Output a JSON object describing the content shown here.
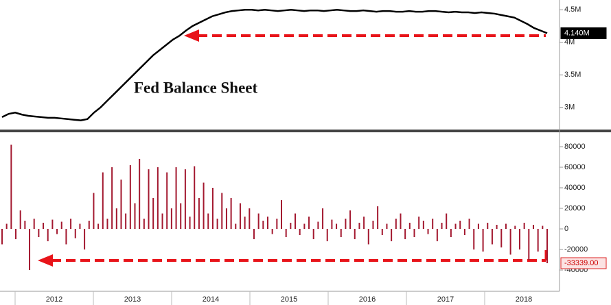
{
  "chart_data": [
    {
      "type": "line",
      "annotation": "Fed Balance Sheet",
      "color": "#000000",
      "values": [
        2.85,
        2.9,
        2.92,
        2.89,
        2.87,
        2.86,
        2.85,
        2.84,
        2.84,
        2.83,
        2.82,
        2.81,
        2.8,
        2.82,
        2.92,
        3.0,
        3.1,
        3.2,
        3.3,
        3.4,
        3.5,
        3.6,
        3.7,
        3.8,
        3.88,
        3.96,
        4.04,
        4.1,
        4.18,
        4.25,
        4.3,
        4.35,
        4.4,
        4.43,
        4.46,
        4.48,
        4.49,
        4.5,
        4.5,
        4.49,
        4.5,
        4.49,
        4.48,
        4.49,
        4.5,
        4.49,
        4.48,
        4.49,
        4.49,
        4.48,
        4.49,
        4.5,
        4.49,
        4.48,
        4.48,
        4.49,
        4.48,
        4.47,
        4.48,
        4.48,
        4.47,
        4.47,
        4.48,
        4.47,
        4.47,
        4.48,
        4.48,
        4.47,
        4.46,
        4.47,
        4.46,
        4.46,
        4.45,
        4.46,
        4.45,
        4.44,
        4.42,
        4.4,
        4.38,
        4.33,
        4.28,
        4.22,
        4.18,
        4.14
      ],
      "ylim": [
        2.67,
        4.65
      ],
      "yticks": [
        {
          "value": 3,
          "label": "3M"
        },
        {
          "value": 3.5,
          "label": "3.5M"
        },
        {
          "value": 4,
          "label": "4M"
        },
        {
          "value": 4.5,
          "label": "4.5M"
        }
      ],
      "last_label": {
        "value": 4.14,
        "label": "4.140M"
      }
    },
    {
      "type": "bar",
      "color": "#a3182f",
      "values": [
        -15000,
        5000,
        82000,
        -10000,
        18000,
        8000,
        -40000,
        10000,
        -8000,
        6000,
        -12000,
        9000,
        -5000,
        7000,
        -15000,
        10000,
        -9000,
        5000,
        -20000,
        8000,
        35000,
        5000,
        55000,
        10000,
        60000,
        20000,
        48000,
        15000,
        62000,
        25000,
        68000,
        10000,
        58000,
        30000,
        60000,
        15000,
        55000,
        20000,
        60000,
        25000,
        58000,
        12000,
        61000,
        30000,
        45000,
        15000,
        40000,
        10000,
        35000,
        20000,
        30000,
        5000,
        25000,
        12000,
        20000,
        -10000,
        15000,
        8000,
        12000,
        -5000,
        10000,
        28000,
        -8000,
        6000,
        15000,
        -6000,
        5000,
        12000,
        -10000,
        7000,
        20000,
        -12000,
        9000,
        5000,
        -8000,
        10000,
        18000,
        -10000,
        6000,
        12000,
        -15000,
        8000,
        22000,
        -6000,
        5000,
        -12000,
        10000,
        15000,
        -10000,
        6000,
        -8000,
        12000,
        8000,
        -5000,
        10000,
        -12000,
        6000,
        15000,
        -8000,
        5000,
        8000,
        -6000,
        10000,
        -20000,
        5000,
        -22000,
        6000,
        -15000,
        4000,
        -18000,
        5000,
        -25000,
        3000,
        -20000,
        6000,
        -30000,
        4000,
        -22000,
        3000,
        -33339
      ],
      "ylim": [
        -60667,
        89333
      ],
      "yticks": [
        -40000,
        -20000,
        0,
        20000,
        40000,
        60000,
        80000
      ],
      "last_label": {
        "value": -33339,
        "label": "-33339.00"
      },
      "x_labels": [
        "2012",
        "2013",
        "2014",
        "2015",
        "2016",
        "2017",
        "2018"
      ]
    }
  ]
}
